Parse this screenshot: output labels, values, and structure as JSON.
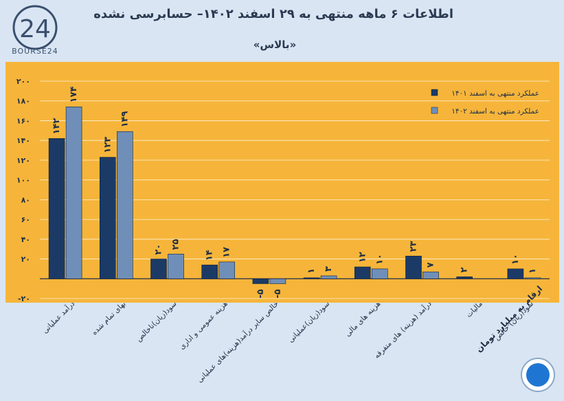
{
  "header": {
    "title": "اطلاعات ۶ ماهه منتهی به ۲۹ اسفند ۱۴۰۲– حسابرسی نشده",
    "subtitle": "«بالاس»",
    "logo_text": "BOURSE24"
  },
  "footer": {
    "unit_note": "ارقام به میلیارد تومان"
  },
  "colors": {
    "background": "#d9e5f2",
    "plot_bg": "#f6b53a",
    "series_1401": "#1b3a66",
    "series_1402": "#6f8fb8",
    "grid": "#ffffff"
  },
  "chart_data": {
    "type": "bar",
    "title": "اطلاعات ۶ ماهه منتهی به ۲۹ اسفند ۱۴۰۲– حسابرسی نشده",
    "categories": [
      "درآمد عملیاتی",
      "بهای تمام شده",
      "سود(زیان)ناخالص",
      "هزینه عمومی و اداری",
      "خالص سایر درآمد(هزینه)های عملیاتی",
      "سود(زیان)عملیاتی",
      "هزینه های مالی",
      "درآمد (هزینه) های متفرقه",
      "مالیات",
      "سود(زیان) خالص"
    ],
    "series": [
      {
        "name": "عملکرد منتهی به اسفند ۱۴۰۱",
        "values": [
          142,
          123,
          20,
          14,
          -5,
          1,
          12,
          23,
          2,
          10
        ],
        "labels": [
          "۱۴۲",
          "۱۲۳",
          "۲۰",
          "۱۴",
          "-۵",
          "۱",
          "۱۲",
          "۲۳",
          "۲",
          "۱۰"
        ]
      },
      {
        "name": "عملکرد منتهی به اسفند ۱۴۰۲",
        "values": [
          174,
          149,
          25,
          17,
          -5,
          3,
          10,
          7,
          0,
          1
        ],
        "labels": [
          "۱۷۴",
          "۱۴۹",
          "۲۵",
          "۱۷",
          "-۵",
          "۳",
          "۱۰",
          "۷",
          "",
          "۱"
        ]
      }
    ],
    "ylim": [
      -20,
      200
    ],
    "yticks": [
      -20,
      20,
      40,
      60,
      80,
      100,
      120,
      140,
      160,
      180,
      200
    ],
    "ytick_labels": [
      "-۲۰",
      "۲۰",
      "۴۰",
      "۶۰",
      "۸۰",
      "۱۰۰",
      "۱۲۰",
      "۱۴۰",
      "۱۶۰",
      "۱۸۰",
      "۲۰۰"
    ],
    "legend_position": "top-right",
    "grid": true
  }
}
